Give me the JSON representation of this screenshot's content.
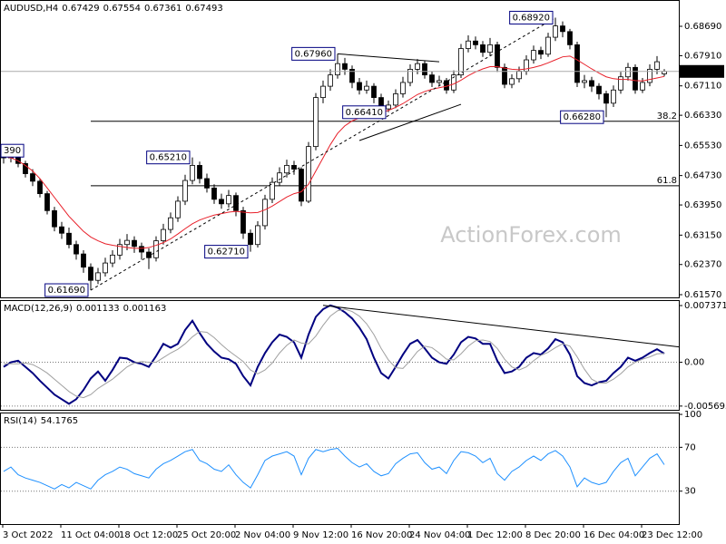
{
  "chart_data": [
    {
      "type": "candlestick",
      "title": "AUDUSD,H4",
      "watermark": "ActionForex.com",
      "categories": [
        "3 Oct 2022",
        null,
        null,
        null,
        null,
        null,
        null,
        null,
        "11 Oct 04:00",
        null,
        null,
        null,
        null,
        null,
        null,
        null,
        "18 Oct 12:00",
        null,
        null,
        null,
        null,
        null,
        null,
        null,
        "25 Oct 20:00",
        null,
        null,
        null,
        null,
        null,
        null,
        null,
        "2 Nov 04:00",
        null,
        null,
        null,
        null,
        null,
        null,
        null,
        "9 Nov 12:00",
        null,
        null,
        null,
        null,
        null,
        null,
        null,
        "16 Nov 20:00",
        null,
        null,
        null,
        null,
        null,
        null,
        null,
        "24 Nov 04:00",
        null,
        null,
        null,
        null,
        null,
        null,
        null,
        "1 Dec 12:00",
        null,
        null,
        null,
        null,
        null,
        null,
        null,
        "8 Dec 20:00",
        null,
        null,
        null,
        null,
        null,
        null,
        null,
        "16 Dec 04:00",
        null,
        null,
        null,
        null,
        null,
        null,
        null,
        "23 Dec 12:00",
        null,
        null,
        null
      ],
      "open": [
        0.653,
        0.652,
        0.6528,
        0.6505,
        0.6478,
        0.6458,
        0.6425,
        0.638,
        0.6337,
        0.632,
        0.629,
        0.6265,
        0.623,
        0.6195,
        0.6215,
        0.6241,
        0.6262,
        0.629,
        0.6301,
        0.6285,
        0.627,
        0.6255,
        0.63,
        0.633,
        0.6361,
        0.6405,
        0.646,
        0.65,
        0.6465,
        0.644,
        0.641,
        0.6398,
        0.642,
        0.638,
        0.632,
        0.629,
        0.634,
        0.641,
        0.6455,
        0.648,
        0.65,
        0.649,
        0.6405,
        0.655,
        0.668,
        0.671,
        0.674,
        0.677,
        0.6755,
        0.672,
        0.67,
        0.671,
        0.668,
        0.665,
        0.666,
        0.669,
        0.672,
        0.6755,
        0.677,
        0.674,
        0.672,
        0.6725,
        0.67,
        0.674,
        0.681,
        0.683,
        0.682,
        0.68,
        0.682,
        0.676,
        0.6715,
        0.673,
        0.675,
        0.678,
        0.6805,
        0.6795,
        0.684,
        0.687,
        0.6855,
        0.682,
        0.672,
        0.6725,
        0.671,
        0.669,
        0.6665,
        0.67,
        0.6735,
        0.676,
        0.67,
        0.672,
        0.6755,
        0.67429
      ],
      "high": [
        0.6539,
        0.6536,
        0.6532,
        0.6512,
        0.649,
        0.6465,
        0.6432,
        0.639,
        0.635,
        0.6335,
        0.63,
        0.6275,
        0.624,
        0.6228,
        0.6255,
        0.6275,
        0.6305,
        0.6318,
        0.6312,
        0.6295,
        0.628,
        0.6312,
        0.6345,
        0.6375,
        0.6418,
        0.6475,
        0.6521,
        0.651,
        0.6478,
        0.645,
        0.6425,
        0.6435,
        0.6428,
        0.639,
        0.633,
        0.6352,
        0.6422,
        0.6468,
        0.6495,
        0.6515,
        0.6512,
        0.6495,
        0.6562,
        0.6692,
        0.6725,
        0.6755,
        0.6796,
        0.6785,
        0.6765,
        0.6732,
        0.6725,
        0.6718,
        0.669,
        0.6672,
        0.6702,
        0.6735,
        0.6768,
        0.6782,
        0.6778,
        0.675,
        0.6738,
        0.6732,
        0.6752,
        0.6822,
        0.6845,
        0.6842,
        0.683,
        0.6838,
        0.6828,
        0.677,
        0.6742,
        0.6762,
        0.6792,
        0.6818,
        0.6815,
        0.6852,
        0.6892,
        0.6882,
        0.6862,
        0.6828,
        0.674,
        0.6735,
        0.6718,
        0.6698,
        0.6712,
        0.6748,
        0.6772,
        0.6768,
        0.6732,
        0.6768,
        0.679,
        0.67554
      ],
      "low": [
        0.6505,
        0.6508,
        0.6495,
        0.6468,
        0.6445,
        0.6415,
        0.637,
        0.6325,
        0.6305,
        0.628,
        0.625,
        0.6215,
        0.6169,
        0.6185,
        0.6205,
        0.623,
        0.625,
        0.6275,
        0.6268,
        0.625,
        0.6225,
        0.6245,
        0.629,
        0.632,
        0.635,
        0.6395,
        0.645,
        0.6452,
        0.6428,
        0.6398,
        0.6385,
        0.6388,
        0.6365,
        0.6305,
        0.6271,
        0.6282,
        0.633,
        0.64,
        0.6445,
        0.6468,
        0.6475,
        0.6392,
        0.64,
        0.654,
        0.6665,
        0.6698,
        0.673,
        0.674,
        0.6705,
        0.6688,
        0.669,
        0.6665,
        0.6645,
        0.6641,
        0.6652,
        0.668,
        0.671,
        0.6742,
        0.673,
        0.6708,
        0.671,
        0.669,
        0.6692,
        0.6732,
        0.68,
        0.6808,
        0.6788,
        0.679,
        0.6748,
        0.6705,
        0.6705,
        0.672,
        0.674,
        0.677,
        0.6782,
        0.6788,
        0.683,
        0.684,
        0.6808,
        0.6708,
        0.6705,
        0.6695,
        0.6675,
        0.6628,
        0.6655,
        0.669,
        0.6725,
        0.669,
        0.6692,
        0.671,
        0.6742,
        0.67361
      ],
      "close": [
        0.652,
        0.6528,
        0.6505,
        0.6478,
        0.6458,
        0.6425,
        0.638,
        0.6337,
        0.632,
        0.629,
        0.6265,
        0.623,
        0.6195,
        0.6215,
        0.6241,
        0.6262,
        0.629,
        0.6301,
        0.6285,
        0.627,
        0.6255,
        0.63,
        0.633,
        0.6361,
        0.6405,
        0.646,
        0.65,
        0.6465,
        0.644,
        0.641,
        0.6398,
        0.642,
        0.638,
        0.632,
        0.629,
        0.634,
        0.641,
        0.6455,
        0.648,
        0.65,
        0.649,
        0.6405,
        0.655,
        0.668,
        0.671,
        0.674,
        0.677,
        0.6755,
        0.672,
        0.67,
        0.671,
        0.668,
        0.665,
        0.666,
        0.669,
        0.672,
        0.6755,
        0.677,
        0.674,
        0.672,
        0.6725,
        0.67,
        0.674,
        0.681,
        0.683,
        0.682,
        0.68,
        0.682,
        0.676,
        0.6715,
        0.673,
        0.675,
        0.678,
        0.6805,
        0.6795,
        0.684,
        0.687,
        0.6855,
        0.682,
        0.672,
        0.6725,
        0.671,
        0.669,
        0.6665,
        0.67,
        0.6735,
        0.676,
        0.67,
        0.672,
        0.6755,
        0.6775,
        0.67493
      ],
      "series": [
        {
          "color": "#e8202a",
          "values": [
            0.6525,
            0.652,
            0.6512,
            0.65,
            0.6485,
            0.6465,
            0.644,
            0.6415,
            0.639,
            0.6365,
            0.6345,
            0.6325,
            0.631,
            0.63,
            0.6292,
            0.6288,
            0.6285,
            0.6282,
            0.628,
            0.628,
            0.6282,
            0.6288,
            0.6295,
            0.6305,
            0.6318,
            0.6332,
            0.6345,
            0.6355,
            0.6362,
            0.6368,
            0.6372,
            0.6376,
            0.6378,
            0.6376,
            0.6374,
            0.6375,
            0.6382,
            0.6392,
            0.6404,
            0.6416,
            0.6425,
            0.643,
            0.645,
            0.6485,
            0.652,
            0.6555,
            0.6585,
            0.6605,
            0.6618,
            0.6626,
            0.6632,
            0.6636,
            0.664,
            0.6646,
            0.6654,
            0.6664,
            0.6676,
            0.6688,
            0.6696,
            0.6702,
            0.6706,
            0.671,
            0.6716,
            0.6726,
            0.6738,
            0.6748,
            0.6756,
            0.6762,
            0.6762,
            0.6758,
            0.6755,
            0.6754,
            0.6756,
            0.676,
            0.6765,
            0.6772,
            0.678,
            0.6788,
            0.679,
            0.678,
            0.6768,
            0.6756,
            0.6745,
            0.6735,
            0.673,
            0.6728,
            0.6728,
            0.6725,
            0.6724,
            0.6728,
            0.6732,
            0.6736
          ]
        }
      ],
      "up_color": "#ffffff",
      "down_color": "#000000",
      "ylim": [
        0.61498,
        0.69388
      ],
      "yticks": [
        {
          "value": 0.6869,
          "label": "0.68690"
        },
        {
          "value": 0.6791,
          "label": "0.67910"
        },
        {
          "value": 0.6711,
          "label": "0.67110"
        },
        {
          "value": 0.6633,
          "label": "0.66330"
        },
        {
          "value": 0.6553,
          "label": "0.65530"
        },
        {
          "value": 0.6473,
          "label": "0.64730"
        },
        {
          "value": 0.6395,
          "label": "0.63950"
        },
        {
          "value": 0.6315,
          "label": "0.63150"
        },
        {
          "value": 0.6237,
          "label": "0.62370"
        },
        {
          "value": 0.6157,
          "label": "0.61570"
        }
      ],
      "annotations": [
        {
          "at": 0,
          "value": 0.6539,
          "label": "390"
        },
        {
          "at": 12,
          "value": 0.6169,
          "label": "0.61690"
        },
        {
          "at": 26,
          "value": 0.6521,
          "label": "0.65210"
        },
        {
          "at": 34,
          "value": 0.6271,
          "label": "0.62710"
        },
        {
          "at": 46,
          "value": 0.6796,
          "label": "0.67960"
        },
        {
          "at": 53,
          "value": 0.6641,
          "label": "0.66410"
        },
        {
          "at": 76,
          "value": 0.6892,
          "label": "0.68920"
        },
        {
          "at": 83,
          "value": 0.6628,
          "label": "0.66280"
        }
      ],
      "levels": [
        {
          "name": "38.2",
          "value": 0.6617,
          "from": 12
        },
        {
          "name": "61.8",
          "value": 0.6446,
          "from": 12
        }
      ],
      "trendlines": [
        {
          "from": [
            12,
            0.6169
          ],
          "to": [
            76,
            0.6892
          ],
          "dashed": true
        },
        {
          "from": [
            46,
            0.6796
          ],
          "to": [
            60,
            0.6775
          ],
          "dashed": false
        },
        {
          "from": [
            49,
            0.6566
          ],
          "to": [
            63,
            0.6662
          ],
          "dashed": false
        }
      ]
    },
    {
      "type": "line",
      "title": "MACD(12,26,9)",
      "series": [
        {
          "color": "#000080",
          "width": 2,
          "values": [
            -0.0006,
            0.0,
            0.0002,
            -0.0006,
            -0.0014,
            -0.0024,
            -0.0033,
            -0.0042,
            -0.0048,
            -0.0054,
            -0.0048,
            -0.0036,
            -0.0021,
            -0.0012,
            -0.0024,
            -0.001,
            0.0006,
            0.0005,
            0.0,
            -0.0002,
            -0.0006,
            0.0008,
            0.0024,
            0.0019,
            0.0024,
            0.0042,
            0.0054,
            0.0038,
            0.0024,
            0.0014,
            0.0006,
            0.0004,
            -0.0002,
            -0.0018,
            -0.003,
            -0.0006,
            0.0012,
            0.0026,
            0.0036,
            0.0033,
            0.0026,
            0.0006,
            0.0036,
            0.0059,
            0.0069,
            0.0074,
            0.0071,
            0.0065,
            0.0057,
            0.0045,
            0.003,
            0.0006,
            -0.0014,
            -0.0021,
            -0.0006,
            0.001,
            0.0024,
            0.0029,
            0.0018,
            0.0006,
            0.0,
            -0.0002,
            0.001,
            0.0026,
            0.0033,
            0.0031,
            0.0024,
            0.0024,
            0.0002,
            -0.0014,
            -0.0012,
            -0.0006,
            0.0006,
            0.0012,
            0.001,
            0.0018,
            0.003,
            0.0026,
            0.001,
            -0.0018,
            -0.0027,
            -0.003,
            -0.0026,
            -0.0024,
            -0.0014,
            -0.0006,
            0.0006,
            0.0002,
            0.0006,
            0.0012,
            0.0017,
            0.001133
          ]
        },
        {
          "color": "#a0a0a0",
          "width": 1,
          "values": [
            -0.0002,
            -0.0002,
            -0.0002,
            -0.0001,
            -0.0003,
            -0.0008,
            -0.0014,
            -0.0022,
            -0.003,
            -0.0038,
            -0.0044,
            -0.0046,
            -0.0042,
            -0.0034,
            -0.0028,
            -0.0022,
            -0.0014,
            -0.0006,
            -0.0001,
            0.0001,
            0.0,
            0.0,
            0.0006,
            0.0012,
            0.0017,
            0.0024,
            0.0033,
            0.004,
            0.0039,
            0.0032,
            0.0023,
            0.0015,
            0.0008,
            0.0001,
            -0.001,
            -0.0015,
            -0.001,
            -0.0001,
            0.0012,
            0.0022,
            0.0029,
            0.0025,
            0.0024,
            0.0034,
            0.0048,
            0.006,
            0.0067,
            0.0069,
            0.0066,
            0.006,
            0.005,
            0.0036,
            0.0018,
            0.0003,
            -0.0007,
            -0.0008,
            0.0002,
            0.0014,
            0.0021,
            0.0019,
            0.0012,
            0.0004,
            0.0003,
            0.0011,
            0.0021,
            0.0028,
            0.0029,
            0.0027,
            0.0018,
            0.0004,
            -0.0006,
            -0.001,
            -0.0006,
            0.0002,
            0.0009,
            0.0013,
            0.0019,
            0.0024,
            0.0021,
            0.0007,
            -0.0009,
            -0.0022,
            -0.0027,
            -0.0027,
            -0.0022,
            -0.0015,
            -0.0006,
            0.0,
            0.0004,
            0.0007,
            0.0011,
            0.001163
          ]
        }
      ],
      "ylim": [
        -0.00618,
        0.00808
      ],
      "yticks": [
        0.007371,
        {
          "value": 0,
          "label": "0.00"
        },
        -0.005693
      ],
      "trendlines": [
        {
          "from": [
            44,
            0.0074
          ],
          "to": [
            93,
            0.002
          ],
          "dashed": false
        }
      ]
    },
    {
      "type": "line",
      "title": "RSI(14)",
      "series": [
        {
          "color": "#1e90ff",
          "width": 1,
          "values": [
            48,
            52,
            45,
            42,
            40,
            38,
            35,
            32,
            36,
            33,
            38,
            35,
            32,
            40,
            45,
            48,
            52,
            50,
            46,
            44,
            42,
            50,
            55,
            58,
            62,
            66,
            68,
            58,
            55,
            50,
            48,
            54,
            45,
            38,
            33,
            45,
            58,
            62,
            64,
            66,
            62,
            45,
            60,
            68,
            66,
            68,
            69,
            62,
            56,
            52,
            55,
            48,
            44,
            46,
            55,
            60,
            64,
            65,
            56,
            50,
            52,
            46,
            58,
            66,
            65,
            62,
            56,
            60,
            46,
            40,
            48,
            52,
            58,
            62,
            58,
            64,
            67,
            62,
            52,
            34,
            42,
            38,
            36,
            38,
            48,
            56,
            60,
            44,
            52,
            60,
            64,
            54.1765
          ]
        }
      ],
      "ylim": [
        0,
        101.7
      ],
      "yticks": [
        30,
        70,
        100
      ]
    }
  ]
}
